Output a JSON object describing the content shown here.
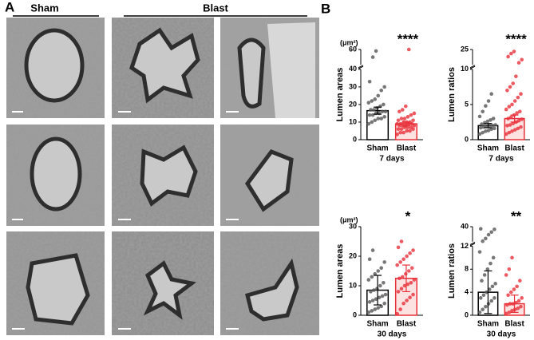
{
  "panel_a": {
    "label": "A",
    "groups": [
      "Sham",
      "Blast"
    ]
  },
  "panel_b": {
    "label": "B"
  },
  "chart_data": [
    {
      "type": "bar-scatter",
      "y_label": "Lumen areas",
      "unit": "(μm²)",
      "x_label": "7 days",
      "significance": "****",
      "categories": [
        "Sham",
        "Blast"
      ],
      "values": [
        16.5,
        9
      ],
      "errors": [
        2,
        1
      ],
      "colors": [
        "#000000",
        "#e8303a"
      ],
      "fills": [
        "#ffffff",
        "#fde2e2"
      ],
      "point_colors": [
        "#555555",
        "#e8303a"
      ],
      "points": [
        [
          9,
          10,
          11,
          12,
          12,
          13,
          14,
          14,
          15,
          15,
          16,
          16,
          17,
          17,
          18,
          19,
          20,
          21,
          22,
          23,
          25,
          28,
          30,
          33,
          50,
          58
        ],
        [
          3,
          4,
          4,
          5,
          5,
          6,
          6,
          6,
          7,
          7,
          7,
          8,
          8,
          8,
          8,
          9,
          9,
          9,
          9,
          10,
          10,
          10,
          11,
          11,
          12,
          12,
          13,
          14,
          15,
          16,
          17,
          19,
          60
        ]
      ],
      "ylim": [
        0,
        60
      ],
      "ybreak": 40,
      "yticks": [
        0,
        10,
        20,
        30,
        40,
        60
      ]
    },
    {
      "type": "bar-scatter",
      "y_label": "Lumen ratios",
      "x_label": "7 days",
      "significance": "****",
      "categories": [
        "Sham",
        "Blast"
      ],
      "values": [
        2,
        3
      ],
      "errors": [
        0.3,
        0.5
      ],
      "colors": [
        "#000000",
        "#e8303a"
      ],
      "fills": [
        "#ffffff",
        "#fde2e2"
      ],
      "point_colors": [
        "#555555",
        "#e8303a"
      ],
      "points": [
        [
          0.8,
          1,
          1.2,
          1.3,
          1.5,
          1.6,
          1.7,
          1.8,
          1.9,
          2,
          2,
          2.1,
          2.2,
          2.4,
          2.6,
          2.8,
          3,
          3.3,
          4,
          4.8,
          5.5,
          6.5
        ],
        [
          0.8,
          1,
          1.2,
          1.4,
          1.6,
          1.8,
          2,
          2.1,
          2.3,
          2.5,
          2.7,
          2.9,
          3,
          3.2,
          3.5,
          3.8,
          4,
          4.3,
          4.7,
          5,
          5.5,
          6,
          6.5,
          7,
          7.5,
          8,
          9,
          12,
          15,
          18,
          21,
          23
        ]
      ],
      "ylim": [
        0,
        25
      ],
      "ybreak": 10,
      "yticks": [
        0,
        5,
        10,
        25
      ]
    },
    {
      "type": "bar-scatter",
      "y_label": "Lumen areas",
      "unit": "(μm²)",
      "x_label": "30 days",
      "significance": "*",
      "categories": [
        "Sham",
        "Blast"
      ],
      "values": [
        8.5,
        12.5
      ],
      "errors": [
        5,
        4.5
      ],
      "colors": [
        "#000000",
        "#e8303a"
      ],
      "fills": [
        "#ffffff",
        "#fde2e2"
      ],
      "point_colors": [
        "#555555",
        "#e8303a"
      ],
      "points": [
        [
          1,
          1.5,
          2,
          2.5,
          3,
          4,
          4.5,
          5,
          5.5,
          6,
          6.5,
          7,
          8,
          8.5,
          9,
          10,
          11,
          12,
          13,
          14,
          15,
          16,
          18,
          19,
          22
        ],
        [
          0.5,
          2,
          4,
          5,
          6,
          7,
          8,
          9,
          10,
          10.5,
          11,
          12,
          12.5,
          13,
          14,
          15,
          16,
          17,
          18,
          19,
          20,
          21,
          22,
          23,
          25
        ]
      ],
      "ylim": [
        0,
        30
      ],
      "yticks": [
        0,
        10,
        20,
        30
      ]
    },
    {
      "type": "bar-scatter",
      "y_label": "Lumen ratios",
      "x_label": "30 days",
      "significance": "**",
      "categories": [
        "Sham",
        "Blast"
      ],
      "values": [
        4,
        2
      ],
      "errors": [
        3.7,
        1.5
      ],
      "colors": [
        "#000000",
        "#e8303a"
      ],
      "fills": [
        "#ffffff",
        "#fde2e2"
      ],
      "point_colors": [
        "#555555",
        "#e8303a"
      ],
      "points": [
        [
          0.5,
          1,
          1.5,
          2,
          2.5,
          3,
          3,
          3.5,
          4,
          4.5,
          5,
          5.5,
          6,
          7,
          8,
          9,
          10,
          11,
          13,
          18,
          25,
          30,
          35,
          36
        ],
        [
          0.3,
          0.5,
          0.8,
          1,
          1.2,
          1.5,
          1.8,
          2,
          2,
          2.2,
          2.5,
          3,
          3.5,
          4,
          4.5,
          5,
          6,
          7,
          8,
          10
        ]
      ],
      "ylim": [
        0,
        40
      ],
      "ybreak": 12,
      "yticks": [
        0,
        4,
        8,
        12,
        40
      ]
    }
  ]
}
